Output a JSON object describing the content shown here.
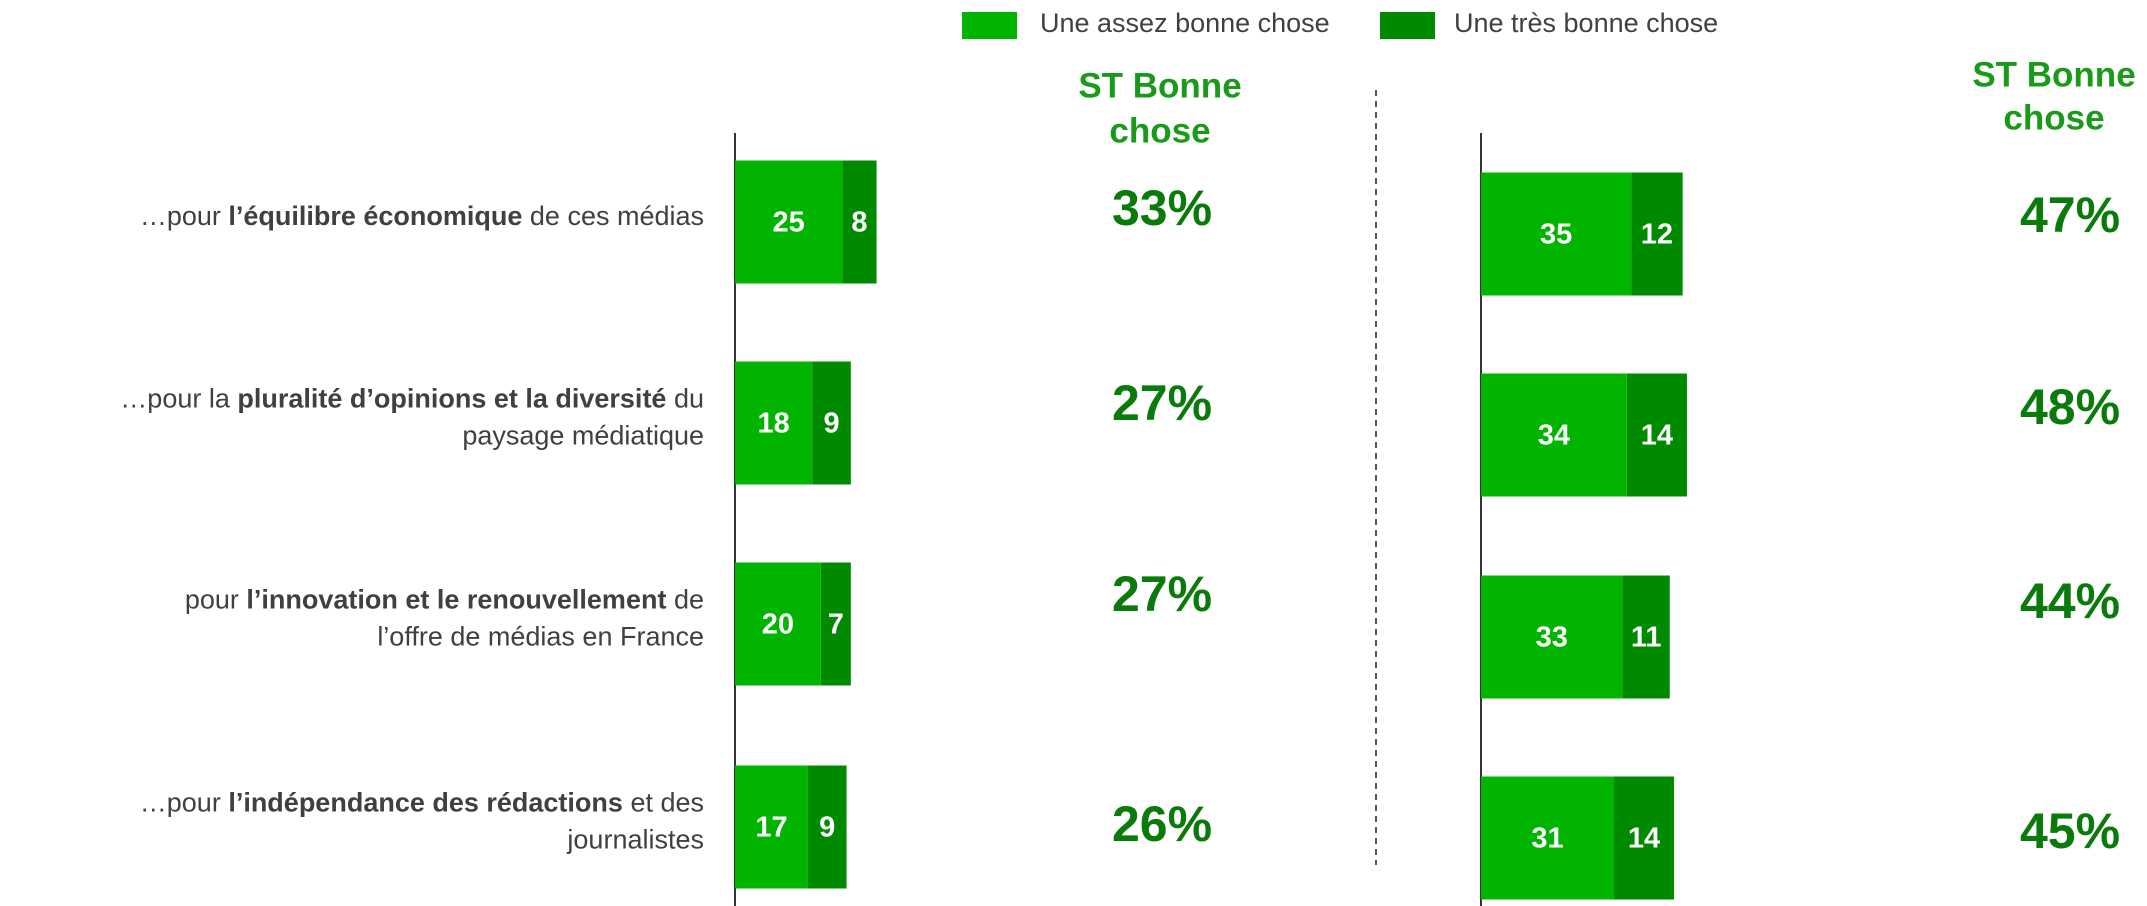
{
  "chart_data": [
    {
      "type": "bar",
      "orientation": "horizontal",
      "xlim": [
        0,
        100
      ],
      "categories": [
        [
          [
            {
              "text": "…pour ",
              "bold": false
            },
            {
              "text": "l’équilibre économique",
              "bold": true
            },
            {
              "text": " de ces médias",
              "bold": false
            }
          ]
        ],
        [
          [
            {
              "text": "…pour la ",
              "bold": false
            },
            {
              "text": "pluralité d’opinions et la diversité",
              "bold": true
            },
            {
              "text": " du",
              "bold": false
            }
          ],
          [
            {
              "text": "paysage médiatique",
              "bold": false
            }
          ]
        ],
        [
          [
            {
              "text": "pour ",
              "bold": false
            },
            {
              "text": "l’innovation et le renouvellement",
              "bold": true
            },
            {
              "text": " de",
              "bold": false
            }
          ],
          [
            {
              "text": "l’offre de médias en France",
              "bold": false
            }
          ]
        ],
        [
          [
            {
              "text": "…pour ",
              "bold": false
            },
            {
              "text": "l’indépendance des rédactions",
              "bold": true
            },
            {
              "text": " et des",
              "bold": false
            }
          ],
          [
            {
              "text": "journalistes",
              "bold": false
            }
          ]
        ]
      ],
      "series": [
        {
          "name": "Une assez bonne chose",
          "color": "#00b400",
          "values": [
            25,
            18,
            20,
            17
          ]
        },
        {
          "name": "Une très bonne chose",
          "color": "#008a00",
          "values": [
            8,
            9,
            7,
            9
          ]
        }
      ],
      "totals_title": [
        "ST Bonne",
        "chose"
      ],
      "totals": [
        33,
        27,
        27,
        26
      ],
      "totals_labels": [
        "33%",
        "27%",
        "27%",
        "26%"
      ]
    },
    {
      "type": "bar",
      "orientation": "horizontal",
      "xlim": [
        0,
        100
      ],
      "series": [
        {
          "color": "#00b400",
          "values": [
            35,
            34,
            33,
            31
          ]
        },
        {
          "color": "#008a00",
          "values": [
            12,
            14,
            11,
            14
          ]
        }
      ],
      "totals_title": [
        "ST Bonne",
        "chose"
      ],
      "totals": [
        47,
        48,
        44,
        45
      ],
      "totals_labels": [
        "47%",
        "48%",
        "44%",
        "45%"
      ]
    }
  ]
}
